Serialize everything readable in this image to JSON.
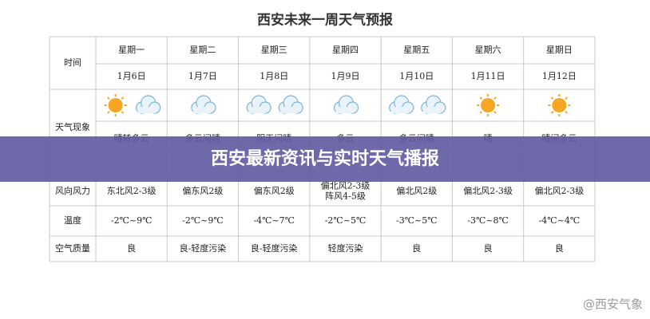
{
  "title": "西安未来一周天气预报",
  "table": {
    "time_label": "时间",
    "weekdays": [
      "星期一",
      "星期二",
      "星期三",
      "星期四",
      "星期五",
      "星期六",
      "星期日"
    ],
    "dates": [
      "1月6日",
      "1月7日",
      "1月8日",
      "1月9日",
      "1月10日",
      "1月11日",
      "1月12日"
    ],
    "weather_label": "天气现象",
    "weather": [
      "晴转多云",
      "多云间晴",
      "阴天间晴",
      "多云",
      "多云间晴",
      "晴",
      "晴间多云"
    ],
    "wind_label": "风向风力",
    "wind": [
      [
        "东北风2-3级"
      ],
      [
        "偏东风2级"
      ],
      [
        "偏东风2级"
      ],
      [
        "偏北风2-3级",
        "阵风4-5级"
      ],
      [
        "偏北风2级"
      ],
      [
        "偏北风2-3级"
      ],
      [
        "偏北风2-3级"
      ]
    ],
    "temp_label": "温度",
    "temp": [
      "-2℃~9℃",
      "-2℃~9℃",
      "-4℃~7℃",
      "-2℃~5℃",
      "-3℃~5℃",
      "-3℃~8℃",
      "-4℃~4℃"
    ],
    "air_label": "空气质量",
    "air": [
      "良",
      "良-轻度污染",
      "良-轻度污染",
      "轻度污染",
      "良",
      "良",
      "良"
    ]
  },
  "banner": "西安最新资讯与实时天气播报",
  "watermark": "@西安气象"
}
